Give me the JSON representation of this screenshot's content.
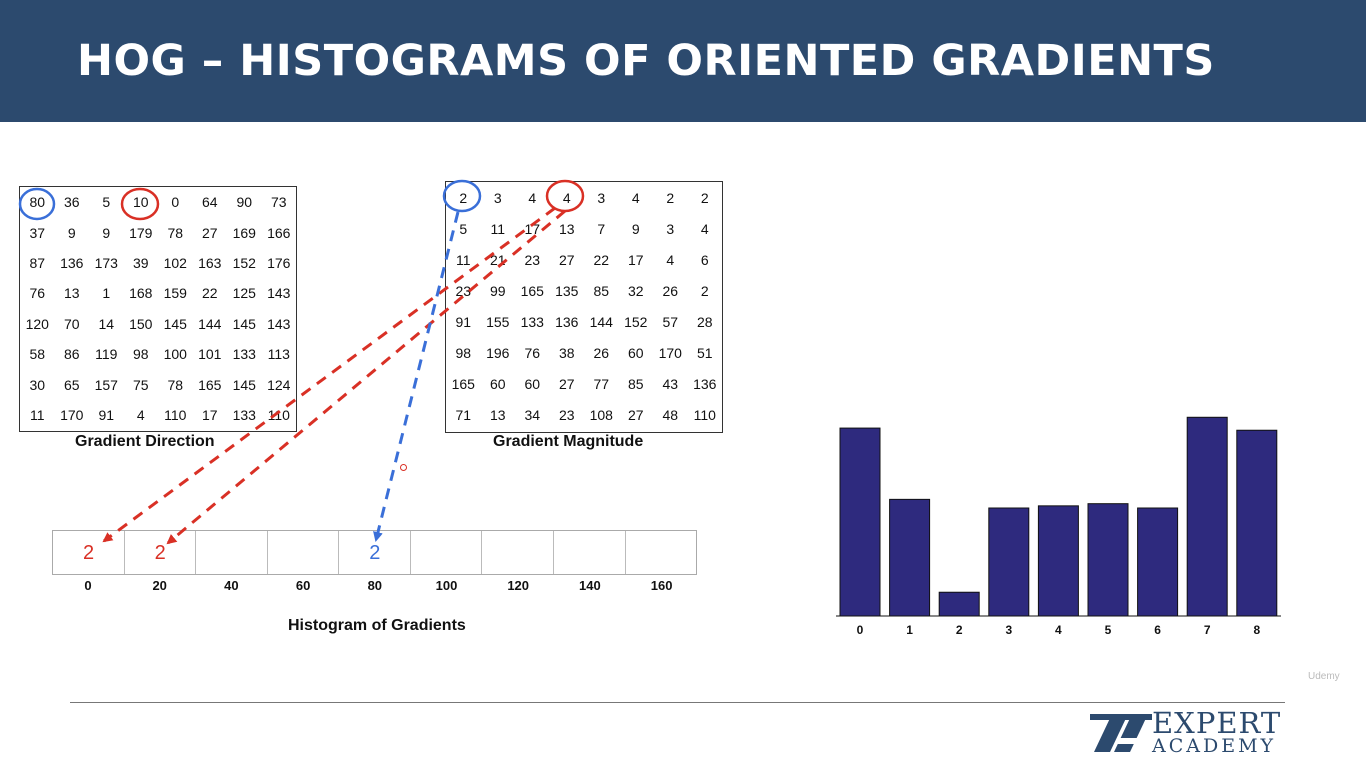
{
  "slide": {
    "title": "HOG – HISTOGRAMS OF ORIENTED GRADIENTS"
  },
  "gradient_direction": {
    "caption": "Gradient Direction",
    "rows": [
      [
        "80",
        "36",
        "5",
        "10",
        "0",
        "64",
        "90",
        "73"
      ],
      [
        "37",
        "9",
        "9",
        "179",
        "78",
        "27",
        "169",
        "166"
      ],
      [
        "87",
        "136",
        "173",
        "39",
        "102",
        "163",
        "152",
        "176"
      ],
      [
        "76",
        "13",
        "1",
        "168",
        "159",
        "22",
        "125",
        "143"
      ],
      [
        "120",
        "70",
        "14",
        "150",
        "145",
        "144",
        "145",
        "143"
      ],
      [
        "58",
        "86",
        "119",
        "98",
        "100",
        "101",
        "133",
        "113"
      ],
      [
        "30",
        "65",
        "157",
        "75",
        "78",
        "165",
        "145",
        "124"
      ],
      [
        "11",
        "170",
        "91",
        "4",
        "110",
        "17",
        "133",
        "110"
      ]
    ]
  },
  "gradient_magnitude": {
    "caption": "Gradient Magnitude",
    "rows": [
      [
        "2",
        "3",
        "4",
        "4",
        "3",
        "4",
        "2",
        "2"
      ],
      [
        "5",
        "11",
        "17",
        "13",
        "7",
        "9",
        "3",
        "4"
      ],
      [
        "11",
        "21",
        "23",
        "27",
        "22",
        "17",
        "4",
        "6"
      ],
      [
        "23",
        "99",
        "165",
        "135",
        "85",
        "32",
        "26",
        "2"
      ],
      [
        "91",
        "155",
        "133",
        "136",
        "144",
        "152",
        "57",
        "28"
      ],
      [
        "98",
        "196",
        "76",
        "38",
        "26",
        "60",
        "170",
        "51"
      ],
      [
        "165",
        "60",
        "60",
        "27",
        "77",
        "85",
        "43",
        "136"
      ],
      [
        "71",
        "13",
        "34",
        "23",
        "108",
        "27",
        "48",
        "110"
      ]
    ]
  },
  "histogram_of_gradients": {
    "caption": "Histogram of Gradients",
    "bin_labels": [
      "0",
      "20",
      "40",
      "60",
      "80",
      "100",
      "120",
      "140",
      "160"
    ],
    "bin_values": [
      "2",
      "2",
      "",
      "",
      "2",
      "",
      "",
      "",
      ""
    ]
  },
  "colors": {
    "header": "#2c4a6e",
    "circle_blue": "#3a6fd8",
    "circle_red": "#d93025",
    "bar_fill": "#2e2a7e"
  },
  "chart_data": {
    "type": "bar",
    "categories": [
      "0",
      "1",
      "2",
      "3",
      "4",
      "5",
      "6",
      "7",
      "8"
    ],
    "values": [
      0.87,
      0.54,
      0.11,
      0.5,
      0.51,
      0.52,
      0.5,
      0.92,
      0.86
    ],
    "title": "",
    "xlabel": "",
    "ylabel": "",
    "ylim": [
      0,
      1
    ],
    "grid": false
  },
  "logo": {
    "line1": "EXPERT",
    "line2": "ACADEMY"
  },
  "watermark": "Udemy"
}
